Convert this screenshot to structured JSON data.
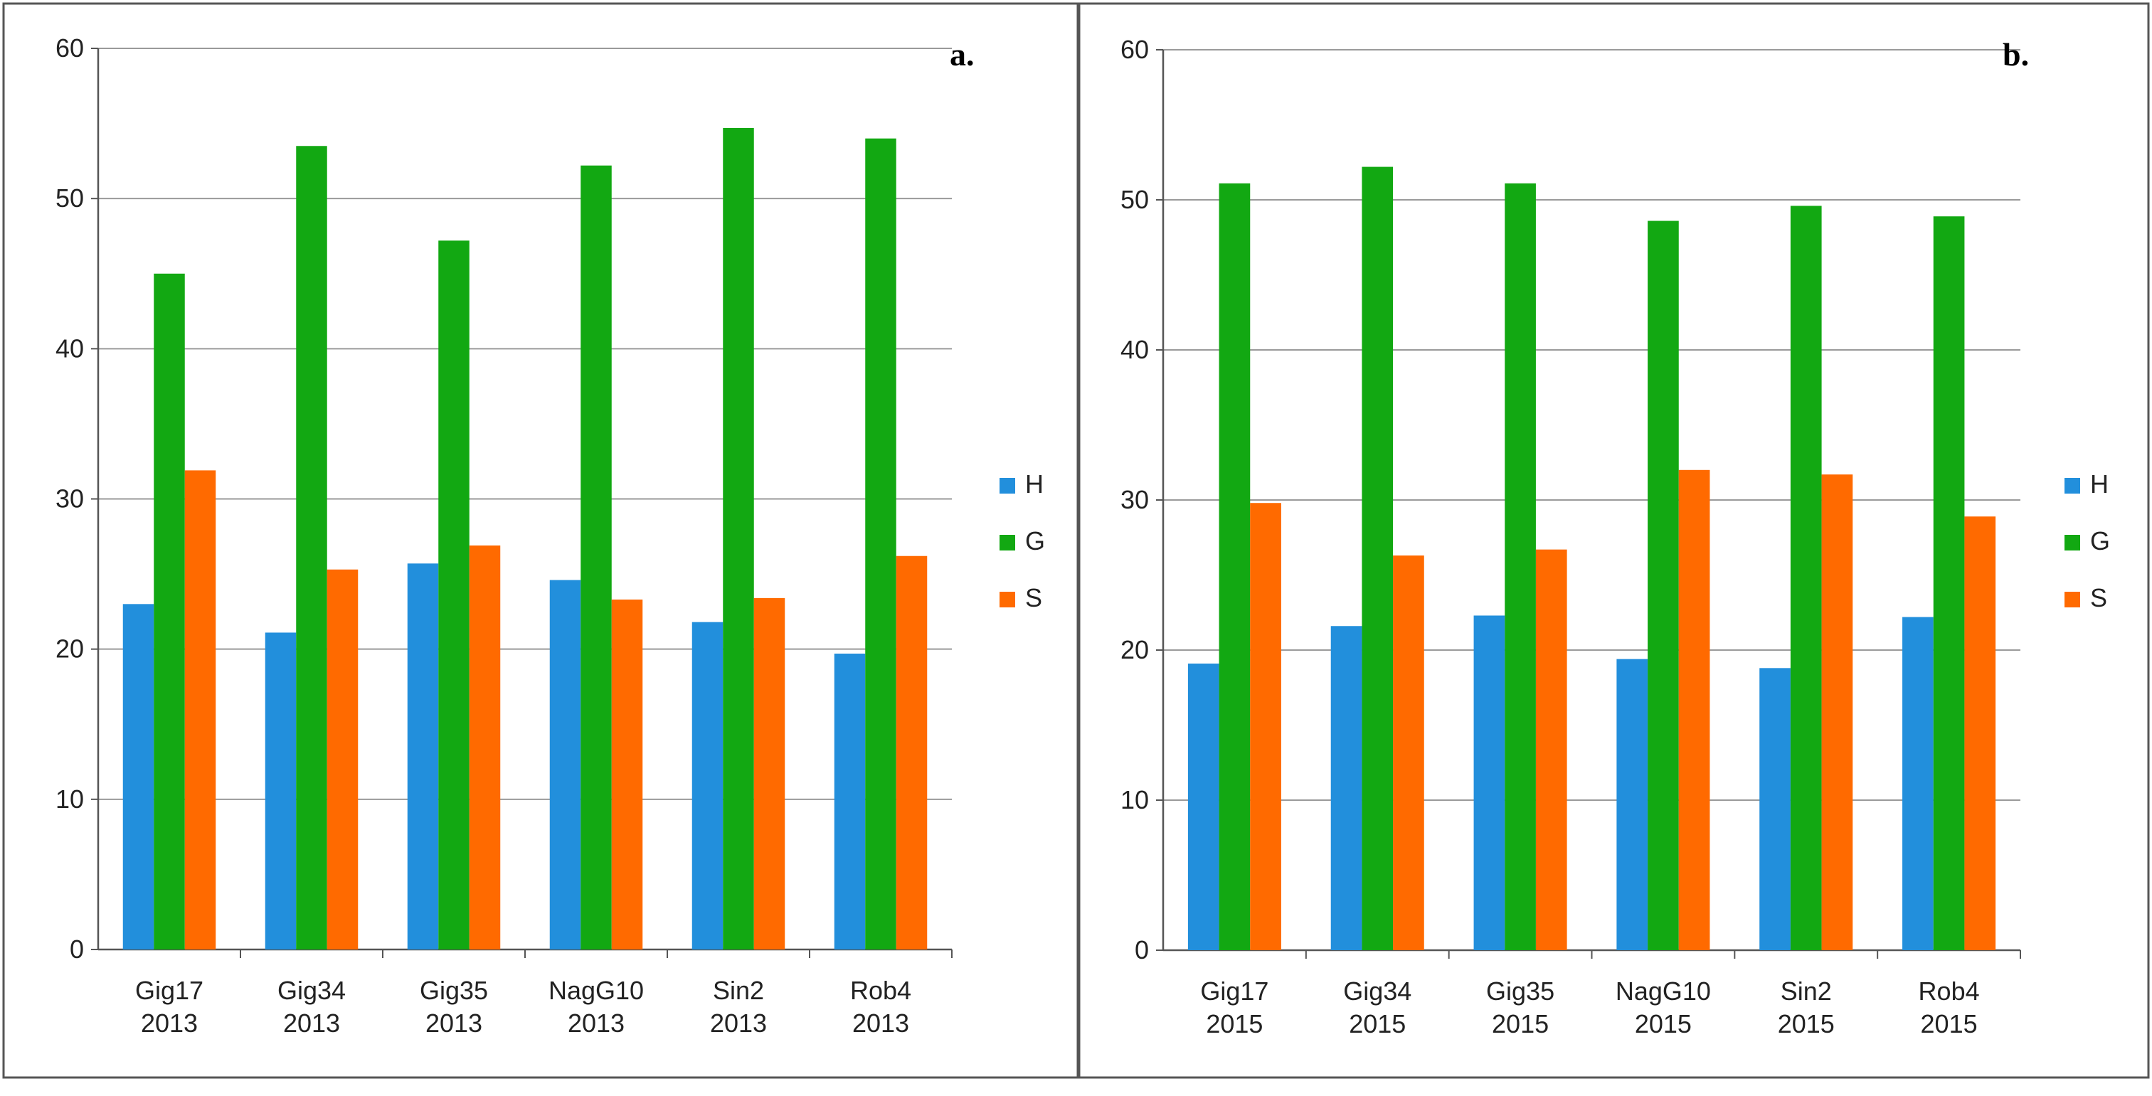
{
  "colors": {
    "H": "#228FDC",
    "G": "#12A812",
    "S": "#FF6A00",
    "grid": "#9a9a9a",
    "axis": "#555555",
    "frame": "#555555"
  },
  "chart_data": [
    {
      "type": "bar",
      "panel_label": "a.",
      "categories": [
        [
          "Gig17",
          "2013"
        ],
        [
          "Gig34",
          "2013"
        ],
        [
          "Gig35",
          "2013"
        ],
        [
          "NagG10",
          "2013"
        ],
        [
          "Sin2",
          "2013"
        ],
        [
          "Rob4",
          "2013"
        ]
      ],
      "series": [
        {
          "name": "H",
          "values": [
            23.0,
            21.1,
            25.7,
            24.6,
            21.8,
            19.7
          ]
        },
        {
          "name": "G",
          "values": [
            45.0,
            53.5,
            47.2,
            52.2,
            54.7,
            54.0
          ]
        },
        {
          "name": "S",
          "values": [
            31.9,
            25.3,
            26.9,
            23.3,
            23.4,
            26.2
          ]
        }
      ],
      "ylim": [
        0,
        60
      ],
      "yticks": [
        "0",
        "10",
        "20",
        "30",
        "40",
        "50",
        "60"
      ],
      "grid": true,
      "legend": "right"
    },
    {
      "type": "bar",
      "panel_label": "b.",
      "categories": [
        [
          "Gig17",
          "2015"
        ],
        [
          "Gig34",
          "2015"
        ],
        [
          "Gig35",
          "2015"
        ],
        [
          "NagG10",
          "2015"
        ],
        [
          "Sin2",
          "2015"
        ],
        [
          "Rob4",
          "2015"
        ]
      ],
      "series": [
        {
          "name": "H",
          "values": [
            19.1,
            21.6,
            22.3,
            19.4,
            18.8,
            22.2
          ]
        },
        {
          "name": "G",
          "values": [
            51.1,
            52.2,
            51.1,
            48.6,
            49.6,
            48.9
          ]
        },
        {
          "name": "S",
          "values": [
            29.8,
            26.3,
            26.7,
            32.0,
            31.7,
            28.9
          ]
        }
      ],
      "ylim": [
        0,
        60
      ],
      "yticks": [
        "0",
        "10",
        "20",
        "30",
        "40",
        "50",
        "60"
      ],
      "grid": true,
      "legend": "right"
    }
  ]
}
